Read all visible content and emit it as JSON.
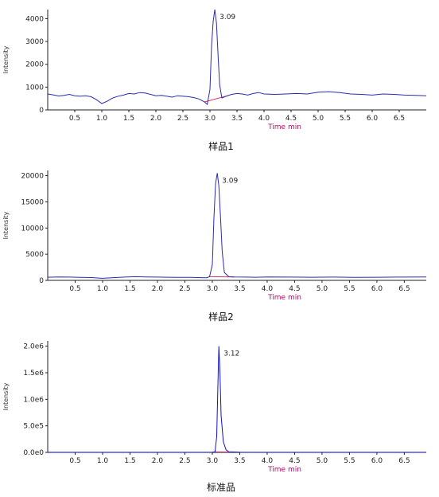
{
  "chart_data": [
    {
      "type": "line",
      "xlabel": "Time min",
      "ylabel": "Intensity",
      "caption": "样品1",
      "xlim": [
        0,
        7.0
      ],
      "ylim": [
        0,
        4400
      ],
      "xticks": [
        "0.5",
        "1.0",
        "1.5",
        "2.0",
        "2.5",
        "3.0",
        "3.5",
        "4.0",
        "4.5",
        "5.0",
        "5.5",
        "6.0",
        "6.5"
      ],
      "yticks": [
        "0",
        "1000",
        "2000",
        "3000",
        "4000"
      ],
      "peak_label": "3.09",
      "series": [
        {
          "color": "#2b2bb0",
          "x": [
            0.0,
            0.1,
            0.2,
            0.3,
            0.4,
            0.5,
            0.6,
            0.7,
            0.8,
            0.9,
            1.0,
            1.1,
            1.2,
            1.3,
            1.4,
            1.5,
            1.6,
            1.7,
            1.8,
            1.9,
            2.0,
            2.1,
            2.2,
            2.3,
            2.4,
            2.5,
            2.6,
            2.7,
            2.8,
            2.9,
            2.95,
            3.0,
            3.03,
            3.06,
            3.09,
            3.12,
            3.15,
            3.18,
            3.22,
            3.3,
            3.4,
            3.5,
            3.6,
            3.7,
            3.8,
            3.9,
            4.0,
            4.2,
            4.4,
            4.6,
            4.8,
            5.0,
            5.2,
            5.4,
            5.6,
            5.8,
            6.0,
            6.2,
            6.4,
            6.6,
            6.8,
            7.0
          ],
          "y": [
            700,
            660,
            610,
            640,
            680,
            620,
            600,
            620,
            580,
            450,
            280,
            380,
            520,
            600,
            650,
            720,
            700,
            760,
            740,
            680,
            620,
            640,
            600,
            560,
            620,
            600,
            580,
            540,
            480,
            350,
            240,
            900,
            2800,
            3900,
            4400,
            3800,
            2400,
            1100,
            520,
            600,
            680,
            720,
            700,
            650,
            720,
            760,
            700,
            680,
            700,
            720,
            700,
            780,
            800,
            760,
            700,
            680,
            650,
            700,
            680,
            650,
            640,
            620
          ]
        }
      ],
      "peak_area": {
        "color": "#cc3366",
        "x_start": 2.9,
        "x_end": 3.35
      }
    },
    {
      "type": "line",
      "xlabel": "Time min",
      "ylabel": "Intensity",
      "caption": "样品2",
      "xlim": [
        0,
        6.9
      ],
      "ylim": [
        0,
        21000
      ],
      "xticks": [
        "0.5",
        "1.0",
        "1.5",
        "2.0",
        "2.5",
        "3.0",
        "3.5",
        "4.0",
        "4.5",
        "5.0",
        "5.5",
        "6.0",
        "6.5"
      ],
      "yticks": [
        "0",
        "5000",
        "10000",
        "15000",
        "20000"
      ],
      "peak_label": "3.09",
      "series": [
        {
          "color": "#2b2bb0",
          "x": [
            0.0,
            0.2,
            0.4,
            0.6,
            0.8,
            1.0,
            1.2,
            1.4,
            1.6,
            1.8,
            2.0,
            2.2,
            2.4,
            2.6,
            2.8,
            2.9,
            2.95,
            3.0,
            3.03,
            3.06,
            3.09,
            3.12,
            3.15,
            3.18,
            3.22,
            3.3,
            3.4,
            3.6,
            3.8,
            4.0,
            4.4,
            4.8,
            5.2,
            5.6,
            6.0,
            6.4,
            6.9
          ],
          "y": [
            600,
            650,
            620,
            580,
            540,
            400,
            520,
            620,
            700,
            650,
            620,
            600,
            580,
            560,
            520,
            500,
            700,
            3000,
            12000,
            18500,
            20500,
            18000,
            12000,
            5500,
            1500,
            700,
            650,
            620,
            600,
            640,
            620,
            600,
            620,
            580,
            600,
            620,
            640
          ]
        }
      ],
      "peak_area": {
        "color": "#cc3366",
        "x_start": 2.95,
        "x_end": 3.4
      }
    },
    {
      "type": "line",
      "xlabel": "Time min",
      "ylabel": "Intensity",
      "caption": "标准品",
      "xlim": [
        0,
        6.9
      ],
      "ylim": [
        0,
        2100000.0
      ],
      "xticks": [
        "0.5",
        "1.0",
        "1.5",
        "2.0",
        "2.5",
        "3.0",
        "3.5",
        "4.0",
        "4.5",
        "5.0",
        "5.5",
        "6.0",
        "6.5"
      ],
      "yticks": [
        "0.0e0",
        "5.0e5",
        "1.0e6",
        "1.5e6",
        "2.0e6"
      ],
      "peak_label": "3.12",
      "series": [
        {
          "color": "#1111cc",
          "x": [
            0.0,
            1.0,
            2.0,
            2.8,
            3.0,
            3.05,
            3.08,
            3.1,
            3.12,
            3.14,
            3.16,
            3.2,
            3.25,
            3.3,
            3.5,
            4.0,
            5.0,
            6.0,
            6.9
          ],
          "y": [
            2000,
            2000,
            2000,
            2000,
            3000,
            10000,
            300000,
            1200000,
            2000000,
            1500000,
            700000,
            200000,
            50000,
            10000,
            3000,
            2000,
            2000,
            2000,
            2000
          ]
        }
      ],
      "peak_area": {
        "color": "#cc3366",
        "x_start": 3.05,
        "x_end": 3.35
      }
    }
  ]
}
